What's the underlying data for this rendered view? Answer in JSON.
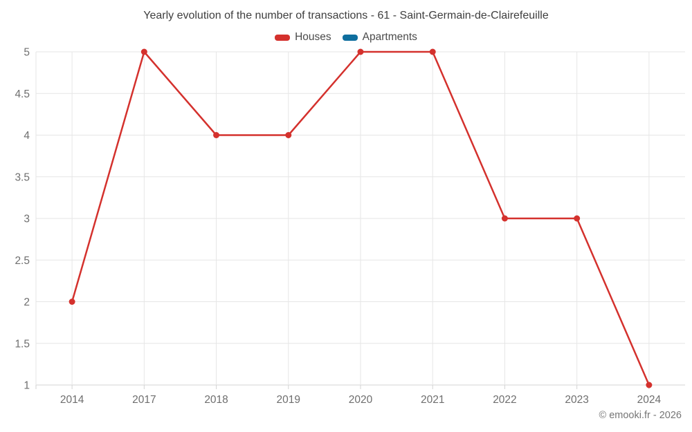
{
  "title": "Yearly evolution of the number of transactions - 61 - Saint-Germain-de-Clairefeuille",
  "legend": {
    "position": "top-center",
    "items": [
      {
        "label": "Houses",
        "color": "#d4312d"
      },
      {
        "label": "Apartments",
        "color": "#0e6e9e"
      }
    ]
  },
  "copyright": "© emooki.fr - 2026",
  "colors": {
    "background": "#ffffff",
    "grid_line": "#e6e6e6",
    "axis_line": "#d3d3d3",
    "tick_label": "#6e6e6e",
    "title_text": "#3e3e3e",
    "legend_text": "#4a4a4a",
    "copyright_text": "#757575",
    "houses": "#d4312d",
    "apartments": "#0e6e9e"
  },
  "chart_data": {
    "type": "line",
    "title": "Yearly evolution of the number of transactions - 61 - Saint-Germain-de-Clairefeuille",
    "categories": [
      "2014",
      "2017",
      "2018",
      "2019",
      "2020",
      "2021",
      "2022",
      "2023",
      "2024"
    ],
    "series": [
      {
        "name": "Houses",
        "color": "#d4312d",
        "values": [
          2,
          5,
          4,
          4,
          5,
          5,
          3,
          3,
          1
        ]
      },
      {
        "name": "Apartments",
        "color": "#0e6e9e",
        "values": []
      }
    ],
    "xlabel": "",
    "ylabel": "",
    "ylim": [
      1,
      5
    ],
    "y_ticks": [
      1,
      1.5,
      2,
      2.5,
      3,
      3.5,
      4,
      4.5,
      5
    ],
    "grid": true,
    "markers": true,
    "legend_position": "top-center"
  }
}
